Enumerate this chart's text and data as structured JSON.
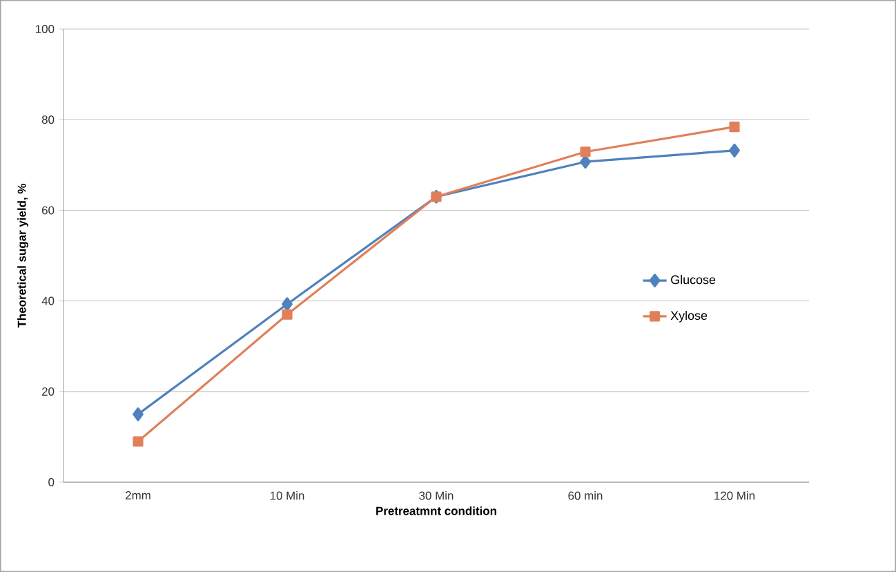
{
  "chart_data": {
    "type": "line",
    "xlabel": "Pretreatmnt condition",
    "ylabel": "Theoretical sugar yield, %",
    "categories": [
      "2mm",
      "10 Min",
      "30 Min",
      "60 min",
      "120 Min"
    ],
    "series": [
      {
        "name": "Glucose",
        "color": "#4f81bd",
        "marker": "diamond",
        "values": [
          15,
          39.3,
          63,
          70.7,
          73.2
        ]
      },
      {
        "name": "Xylose",
        "color": "#e0805a",
        "marker": "square",
        "values": [
          9,
          37,
          63,
          72.9,
          78.4
        ]
      }
    ],
    "ylim": [
      0,
      100
    ],
    "yticks": [
      0,
      20,
      40,
      60,
      80,
      100
    ],
    "grid": "y",
    "legend": "right"
  }
}
